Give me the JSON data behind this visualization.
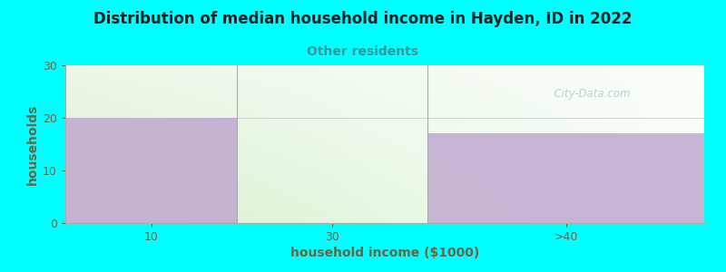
{
  "title": "Distribution of median household income in Hayden, ID in 2022",
  "subtitle": "Other residents",
  "xlabel": "household income ($1000)",
  "ylabel": "households",
  "background_color": "#00FFFF",
  "bar_color": "#c0a8d0",
  "title_color": "#222222",
  "subtitle_color": "#339999",
  "axis_label_color": "#666644",
  "tick_color": "#666644",
  "categories": [
    "10",
    "30",
    ">40"
  ],
  "values": [
    20,
    0,
    17
  ],
  "ylim": [
    0,
    30
  ],
  "yticks": [
    0,
    10,
    20,
    30
  ],
  "watermark": "  City-Data.com",
  "gradient_left_color": "#d8efd0",
  "gradient_right_color": "#f8fff8"
}
